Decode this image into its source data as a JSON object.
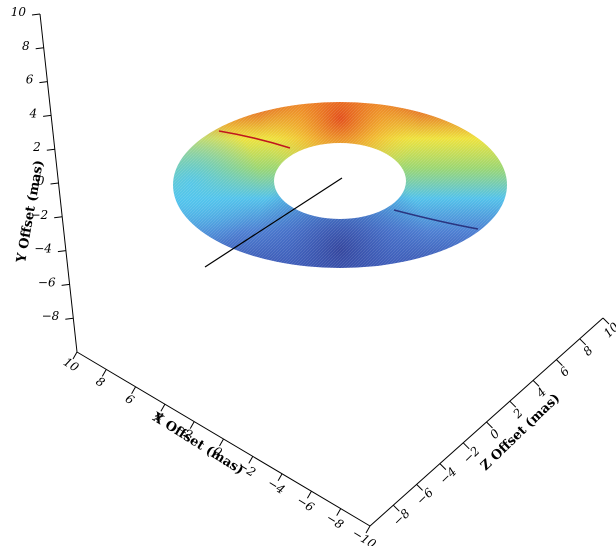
{
  "chart_data": {
    "type": "surface3d",
    "title": "",
    "axes": {
      "x": {
        "label": "X Offset (mas)",
        "range": [
          -10,
          10
        ],
        "ticks": [
          10,
          8,
          6,
          4,
          2,
          0,
          -2,
          -4,
          -6,
          -8,
          -10
        ],
        "tick_labels": [
          "10",
          "8",
          "6",
          "4",
          "2",
          "0",
          "−2",
          "−4",
          "−6",
          "−8",
          "−10"
        ]
      },
      "y": {
        "label": "Y Offset (mas)",
        "range": [
          -10,
          10
        ],
        "ticks": [
          10,
          8,
          6,
          4,
          2,
          0,
          -2,
          -4,
          -6,
          -8
        ],
        "tick_labels": [
          "10",
          "8",
          "6",
          "4",
          "2",
          "0",
          "−2",
          "−4",
          "−6",
          "−8"
        ]
      },
      "z": {
        "label": "Z Offset (mas)",
        "range": [
          -10,
          10
        ],
        "ticks": [
          -8,
          -6,
          -4,
          -2,
          0,
          2,
          4,
          6,
          8,
          10
        ],
        "tick_labels": [
          "−8",
          "−6",
          "−4",
          "−2",
          "0",
          "2",
          "4",
          "6",
          "8",
          "10"
        ]
      }
    },
    "disk": {
      "inner_radius": 2,
      "outer_radius": 7,
      "height": 0,
      "colormap": [
        "#3c4aa6",
        "#4f86d6",
        "#4ec6ee",
        "#8fd67c",
        "#b8dc4a",
        "#f2e83a",
        "#f2a02a",
        "#e0531e"
      ]
    },
    "lines": [
      {
        "name": "",
        "color": "#000000"
      },
      {
        "name": "",
        "color": "#c0161e"
      },
      {
        "name": "",
        "color": "#2a3580"
      }
    ]
  }
}
